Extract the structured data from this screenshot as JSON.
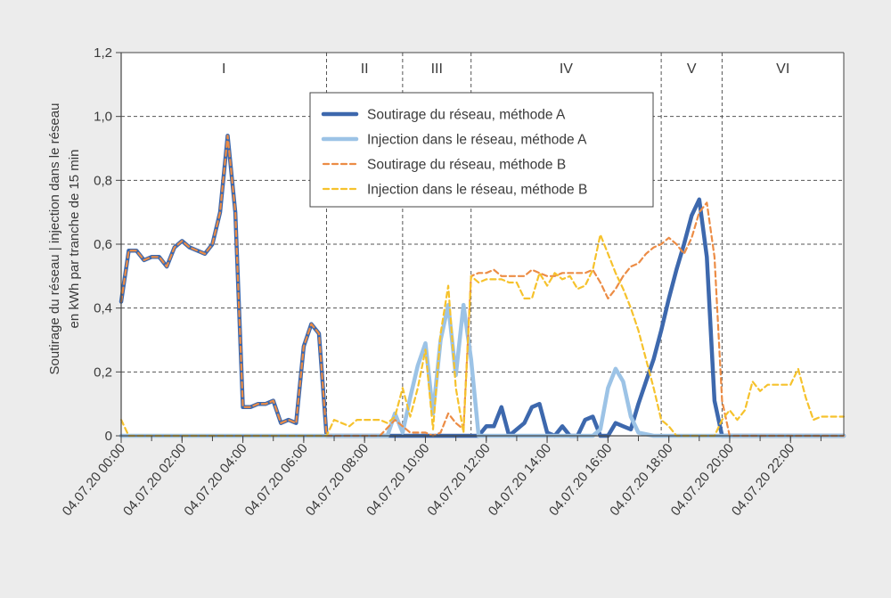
{
  "chart_data": {
    "type": "line",
    "ylabel": [
      "Soutirage du réseau | injection dans le réseau",
      "en kWh par tranche de 15 min"
    ],
    "xlabel": "",
    "ylim": [
      0,
      1.2
    ],
    "yticks": [
      "0",
      "0,2",
      "0,4",
      "0,6",
      "0,8",
      "1,0",
      "1,2"
    ],
    "ytick_values": [
      0,
      0.2,
      0.4,
      0.6,
      0.8,
      1.0,
      1.2
    ],
    "xlim_hours": [
      0,
      23.75
    ],
    "xticks": [
      "04.07.20 00:00",
      "04.07.20 02:00",
      "04.07.20 04:00",
      "04.07.20 06:00",
      "04.07.20 08:00",
      "04.07.20 10:00",
      "04.07.20 12:00",
      "04.07.20 14:00",
      "04.07.20 16:00",
      "04.07.20 18:00",
      "04.07.20 20:00",
      "04.07.20 22:00"
    ],
    "xtick_hours": [
      0,
      2,
      4,
      6,
      8,
      10,
      12,
      14,
      16,
      18,
      20,
      22
    ],
    "grid": true,
    "legend_position": "top-center",
    "phases": [
      {
        "label": "I",
        "start": 0,
        "end": 6.75
      },
      {
        "label": "II",
        "start": 6.75,
        "end": 9.25
      },
      {
        "label": "III",
        "start": 9.25,
        "end": 11.5
      },
      {
        "label": "IV",
        "start": 11.5,
        "end": 17.75
      },
      {
        "label": "V",
        "start": 17.75,
        "end": 19.75
      },
      {
        "label": "VI",
        "start": 19.75,
        "end": 23.75
      }
    ],
    "series": [
      {
        "name": "Soutirage du réseau, méthode A",
        "color": "#3d68ad",
        "style": "solid",
        "width": 4.5,
        "x": [
          0,
          0.25,
          0.5,
          0.75,
          1,
          1.25,
          1.5,
          1.75,
          2,
          2.25,
          2.5,
          2.75,
          3,
          3.25,
          3.5,
          3.75,
          4,
          4.25,
          4.5,
          4.75,
          5,
          5.25,
          5.5,
          5.75,
          6,
          6.25,
          6.5,
          6.75,
          7,
          7.5,
          8,
          8.5,
          9,
          9.5,
          10,
          10.5,
          11,
          11.5,
          11.75,
          12,
          12.25,
          12.5,
          12.75,
          13,
          13.25,
          13.5,
          13.75,
          14,
          14.25,
          14.5,
          14.75,
          15,
          15.25,
          15.5,
          15.75,
          16,
          16.25,
          16.5,
          16.75,
          17,
          17.25,
          17.5,
          17.75,
          18,
          18.25,
          18.5,
          18.75,
          19,
          19.25,
          19.5,
          19.75,
          20,
          21,
          22,
          23,
          23.75
        ],
        "y": [
          0.42,
          0.58,
          0.58,
          0.55,
          0.56,
          0.56,
          0.53,
          0.59,
          0.61,
          0.59,
          0.58,
          0.57,
          0.6,
          0.7,
          0.94,
          0.7,
          0.09,
          0.09,
          0.1,
          0.1,
          0.11,
          0.04,
          0.05,
          0.04,
          0.28,
          0.35,
          0.32,
          0.0,
          0.0,
          0.0,
          0.0,
          0.0,
          0.0,
          0.0,
          0.0,
          0.0,
          0.0,
          0.0,
          0.0,
          0.03,
          0.03,
          0.09,
          0.0,
          0.02,
          0.04,
          0.09,
          0.1,
          0.01,
          0.0,
          0.03,
          0.0,
          0.0,
          0.05,
          0.06,
          0.0,
          0.0,
          0.04,
          0.03,
          0.02,
          0.1,
          0.17,
          0.24,
          0.33,
          0.43,
          0.52,
          0.6,
          0.69,
          0.74,
          0.56,
          0.11,
          0.0,
          0.0,
          0.0,
          0.0,
          0.0,
          0.0
        ]
      },
      {
        "name": "Injection dans le réseau, méthode A",
        "color": "#9cc3e6",
        "style": "solid",
        "width": 4.5,
        "x": [
          0,
          6.75,
          7,
          7.5,
          8,
          8.5,
          8.75,
          9,
          9.25,
          9.5,
          9.75,
          10,
          10.25,
          10.5,
          10.75,
          11,
          11.25,
          11.5,
          11.75,
          12,
          12.5,
          13,
          13.5,
          14,
          14.5,
          15,
          15.5,
          15.75,
          16,
          16.25,
          16.5,
          16.75,
          17,
          17.5,
          18,
          19,
          20,
          21,
          22,
          23,
          23.75
        ],
        "y": [
          0,
          0,
          0,
          0,
          0,
          0,
          0.0,
          0.07,
          0.01,
          0.12,
          0.22,
          0.29,
          0.07,
          0.3,
          0.41,
          0.19,
          0.41,
          0.24,
          0.0,
          0.0,
          0.0,
          0.0,
          0.0,
          0.0,
          0.0,
          0.0,
          0.0,
          0.02,
          0.15,
          0.21,
          0.17,
          0.06,
          0.01,
          0.0,
          0.0,
          0.0,
          0.0,
          0.0,
          0.0,
          0.0,
          0.0
        ]
      },
      {
        "name": "Soutirage du réseau, méthode B",
        "color": "#ec8c45",
        "style": "dashed",
        "width": 2.2,
        "x": [
          0,
          0.25,
          0.5,
          0.75,
          1,
          1.25,
          1.5,
          1.75,
          2,
          2.25,
          2.5,
          2.75,
          3,
          3.25,
          3.5,
          3.75,
          4,
          4.25,
          4.5,
          4.75,
          5,
          5.25,
          5.5,
          5.75,
          6,
          6.25,
          6.5,
          6.75,
          7,
          7.5,
          8,
          8.5,
          9,
          9.5,
          10,
          10.25,
          10.5,
          10.75,
          11,
          11.25,
          11.5,
          11.75,
          12,
          12.25,
          12.5,
          12.75,
          13,
          13.25,
          13.5,
          13.75,
          14,
          14.25,
          14.5,
          14.75,
          15,
          15.25,
          15.5,
          15.75,
          16,
          16.25,
          16.5,
          16.75,
          17,
          17.25,
          17.5,
          17.75,
          18,
          18.25,
          18.5,
          18.75,
          19,
          19.25,
          19.5,
          19.75,
          20,
          21,
          22,
          23,
          23.75
        ],
        "y": [
          0.42,
          0.58,
          0.58,
          0.55,
          0.56,
          0.56,
          0.53,
          0.59,
          0.61,
          0.59,
          0.58,
          0.57,
          0.6,
          0.7,
          0.94,
          0.7,
          0.09,
          0.09,
          0.1,
          0.1,
          0.11,
          0.04,
          0.05,
          0.04,
          0.28,
          0.35,
          0.32,
          0.0,
          0.0,
          0.0,
          0.0,
          0.0,
          0.05,
          0.01,
          0.01,
          0.0,
          0.01,
          0.07,
          0.04,
          0.02,
          0.5,
          0.51,
          0.51,
          0.52,
          0.5,
          0.5,
          0.5,
          0.5,
          0.52,
          0.51,
          0.5,
          0.5,
          0.51,
          0.51,
          0.51,
          0.51,
          0.52,
          0.48,
          0.43,
          0.46,
          0.5,
          0.53,
          0.54,
          0.57,
          0.59,
          0.6,
          0.62,
          0.6,
          0.57,
          0.62,
          0.7,
          0.73,
          0.56,
          0.11,
          0.0,
          0.0,
          0.0,
          0.0,
          0.0
        ]
      },
      {
        "name": "Injection dans le réseau, méthode B",
        "color": "#f6c22c",
        "style": "dashed",
        "width": 2.2,
        "x": [
          0,
          0.25,
          0.5,
          1,
          2,
          3,
          4,
          5,
          6,
          6.5,
          6.75,
          7,
          7.25,
          7.5,
          7.75,
          8,
          8.25,
          8.5,
          8.75,
          9,
          9.25,
          9.5,
          9.75,
          10,
          10.25,
          10.5,
          10.75,
          11,
          11.25,
          11.5,
          11.75,
          12,
          12.25,
          12.5,
          12.75,
          13,
          13.25,
          13.5,
          13.75,
          14,
          14.25,
          14.5,
          14.75,
          15,
          15.25,
          15.5,
          15.75,
          16,
          16.25,
          16.5,
          16.75,
          17,
          17.25,
          17.5,
          17.75,
          18,
          18.25,
          18.5,
          18.75,
          19,
          19.25,
          19.5,
          19.75,
          20,
          20.25,
          20.5,
          20.75,
          21,
          21.25,
          21.5,
          21.75,
          22,
          22.25,
          22.5,
          22.75,
          23,
          23.25,
          23.75
        ],
        "y": [
          0.05,
          0.0,
          0.0,
          0.0,
          0.0,
          0.0,
          0.0,
          0.0,
          0.0,
          0.0,
          0.0,
          0.05,
          0.04,
          0.03,
          0.05,
          0.05,
          0.05,
          0.05,
          0.04,
          0.06,
          0.15,
          0.06,
          0.15,
          0.27,
          0.02,
          0.32,
          0.47,
          0.15,
          0.01,
          0.5,
          0.48,
          0.49,
          0.49,
          0.49,
          0.48,
          0.48,
          0.43,
          0.43,
          0.51,
          0.47,
          0.51,
          0.49,
          0.5,
          0.46,
          0.47,
          0.52,
          0.63,
          0.57,
          0.51,
          0.46,
          0.4,
          0.33,
          0.24,
          0.15,
          0.05,
          0.03,
          0.0,
          0.0,
          0.0,
          0.0,
          0.0,
          0.0,
          0.05,
          0.08,
          0.05,
          0.08,
          0.17,
          0.14,
          0.16,
          0.16,
          0.16,
          0.16,
          0.21,
          0.12,
          0.05,
          0.06,
          0.06,
          0.06
        ]
      }
    ]
  }
}
